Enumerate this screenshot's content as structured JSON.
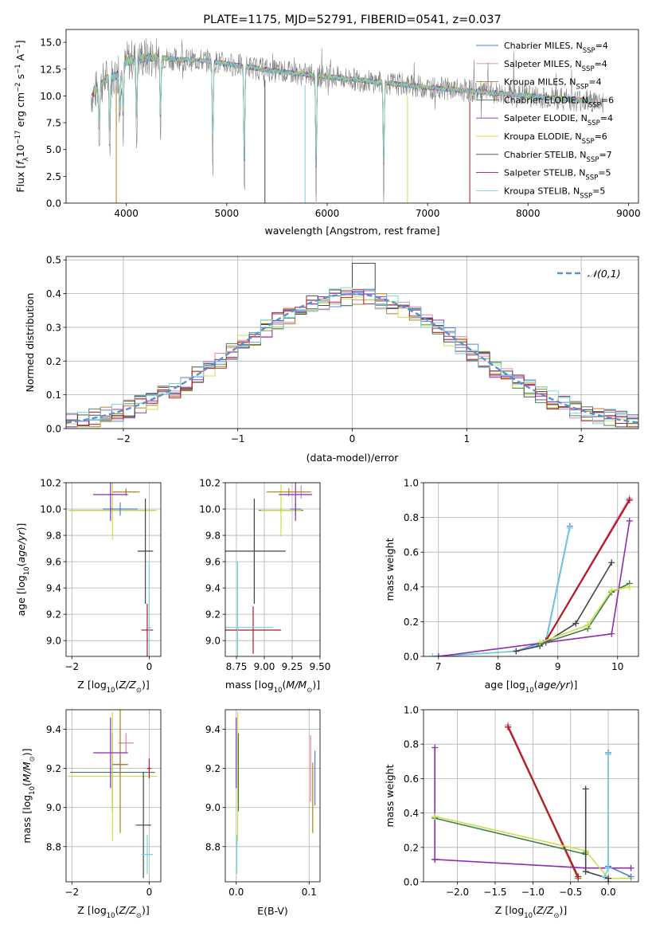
{
  "figure": {
    "title": "PLATE=1175, MJD=52791, FIBERID=0541, z=0.037"
  },
  "models": [
    {
      "label": "Chabrier MILES, N_SSP=4",
      "color": "#4f7fd6"
    },
    {
      "label": "Salpeter MILES, N_SSP=4",
      "color": "#e37fb2"
    },
    {
      "label": "Kroupa MILES, N_SSP=4",
      "color": "#b07d1c"
    },
    {
      "label": "Chabrier ELODIE, N_SSP=6",
      "color": "#3f7f4a"
    },
    {
      "label": "Salpeter ELODIE, N_SSP=4",
      "color": "#8e2bb5"
    },
    {
      "label": "Kroupa ELODIE, N_SSP=6",
      "color": "#c8e04a"
    },
    {
      "label": "Chabrier STELIB, N_SSP=7",
      "color": "#444444"
    },
    {
      "label": "Salpeter STELIB, N_SSP=5",
      "color": "#b2182b"
    },
    {
      "label": "Kroupa STELIB, N_SSP=5",
      "color": "#76d0dc"
    }
  ],
  "chart_data": [
    {
      "id": "spectrum",
      "type": "line",
      "title": "PLATE=1175, MJD=52791, FIBERID=0541, z=0.037",
      "xlabel": "wavelength [Angstrom, rest frame]",
      "ylabel": "Flux [f_λ 10^-17 erg cm^-2 s^-1 A^-1]",
      "xlim": [
        3400,
        9100
      ],
      "ylim": [
        0,
        16.2
      ],
      "xticks": [
        4000,
        5000,
        6000,
        7000,
        8000,
        9000
      ],
      "yticks": [
        0.0,
        2.5,
        5.0,
        7.5,
        10.0,
        12.5,
        15.0
      ],
      "continuum_x": [
        3650,
        3800,
        3950,
        4000,
        4100,
        4300,
        4500,
        4800,
        5000,
        5500,
        6000,
        6500,
        7000,
        7500,
        8000,
        8500,
        9000
      ],
      "continuum_y": [
        10.0,
        11.6,
        12.0,
        13.2,
        13.5,
        13.6,
        13.4,
        13.3,
        13.0,
        12.3,
        11.8,
        11.3,
        10.8,
        10.4,
        10.0,
        9.6,
        9.3
      ],
      "absorption_lines": [
        [
          3730,
          4.5
        ],
        [
          3835,
          6.0
        ],
        [
          3933,
          4.0
        ],
        [
          3968,
          5.5
        ],
        [
          4102,
          7.0
        ],
        [
          4340,
          7.0
        ],
        [
          4861,
          9.5
        ],
        [
          5175,
          11.0
        ],
        [
          5890,
          10.5
        ],
        [
          6563,
          9.5
        ]
      ],
      "spike_wavelengths": [
        3900,
        5380,
        5780,
        6800,
        7420
      ],
      "grid": false,
      "legend": "right"
    },
    {
      "id": "residuals",
      "type": "histogram",
      "xlabel": "(data-model)/error",
      "ylabel": "Normed distribution",
      "xlim": [
        -2.5,
        2.5
      ],
      "ylim": [
        0,
        0.51
      ],
      "xticks": [
        -2,
        -1,
        0,
        1,
        2
      ],
      "yticks": [
        0.0,
        0.1,
        0.2,
        0.3,
        0.4,
        0.5
      ],
      "bin_width": 0.1,
      "reference_curve": {
        "label": "𝒩(0,1)",
        "color": "#5b8fd0"
      },
      "outlier_bin": {
        "x": 0.1,
        "value": 0.49
      },
      "grid": true,
      "legend": "top-right"
    },
    {
      "id": "age_vs_Z",
      "type": "errorbar",
      "xlabel": "Z [log10(Z/Z☉)]",
      "ylabel": "age [log10(age/yr)]",
      "xlim": [
        -2.15,
        0.3
      ],
      "ylim": [
        8.88,
        10.2
      ],
      "xticks": [
        -2,
        0
      ],
      "yticks": [
        9.0,
        9.2,
        9.4,
        9.6,
        9.8,
        10.0,
        10.2
      ],
      "points": [
        {
          "model": 3,
          "x": -0.95,
          "y": 9.99,
          "xerr": 1.1,
          "yerr": 0.02
        },
        {
          "model": 5,
          "x": -0.95,
          "y": 9.99,
          "xerr": 1.15,
          "yerr": 0.22
        },
        {
          "model": 0,
          "x": -0.75,
          "y": 10.0,
          "xerr": 0.45,
          "yerr": 0.05
        },
        {
          "model": 1,
          "x": -0.6,
          "y": 10.13,
          "xerr": 0.35,
          "yerr": 0.03
        },
        {
          "model": 2,
          "x": -0.6,
          "y": 10.13,
          "xerr": 0.35,
          "yerr": 0.02
        },
        {
          "model": 4,
          "x": -1.0,
          "y": 10.11,
          "xerr": 0.45,
          "yerr": 0.2
        },
        {
          "model": 6,
          "x": -0.1,
          "y": 9.68,
          "xerr": 0.2,
          "yerr": 0.4
        },
        {
          "model": 7,
          "x": -0.05,
          "y": 9.08,
          "xerr": 0.15,
          "yerr": 0.2
        },
        {
          "model": 8,
          "x": 0.0,
          "y": 9.1,
          "xerr": 0.05,
          "yerr": 0.5
        }
      ]
    },
    {
      "id": "age_vs_mass",
      "type": "errorbar",
      "xlabel": "mass [log10(M/M☉)]",
      "ylabel": "",
      "xlim": [
        8.65,
        9.5
      ],
      "ylim": [
        8.88,
        10.2
      ],
      "xticks": [
        8.75,
        9.0,
        9.25,
        9.5
      ],
      "yticks": [
        9.0,
        9.2,
        9.4,
        9.6,
        9.8,
        10.0,
        10.2
      ],
      "points": [
        {
          "model": 3,
          "x": 9.15,
          "y": 9.99,
          "xerr": 0.2,
          "yerr": 0.02
        },
        {
          "model": 5,
          "x": 9.15,
          "y": 9.99,
          "xerr": 0.18,
          "yerr": 0.2
        },
        {
          "model": 0,
          "x": 9.28,
          "y": 10.0,
          "xerr": 0.05,
          "yerr": 0.05
        },
        {
          "model": 1,
          "x": 9.33,
          "y": 10.13,
          "xerr": 0.05,
          "yerr": 0.05
        },
        {
          "model": 2,
          "x": 9.22,
          "y": 10.13,
          "xerr": 0.2,
          "yerr": 0.03
        },
        {
          "model": 4,
          "x": 9.28,
          "y": 10.11,
          "xerr": 0.15,
          "yerr": 0.2
        },
        {
          "model": 6,
          "x": 8.91,
          "y": 9.68,
          "xerr": 0.28,
          "yerr": 0.4
        },
        {
          "model": 7,
          "x": 8.9,
          "y": 9.08,
          "xerr": 0.25,
          "yerr": 0.18
        },
        {
          "model": 8,
          "x": 8.76,
          "y": 9.1,
          "xerr": 0.32,
          "yerr": 0.5
        }
      ]
    },
    {
      "id": "weight_vs_age",
      "type": "line",
      "xlabel": "age [log10(age/yr)]",
      "ylabel": "mass weight",
      "xlim": [
        6.75,
        10.35
      ],
      "ylim": [
        0,
        1.0
      ],
      "xticks": [
        7,
        8,
        9,
        10
      ],
      "yticks": [
        0.0,
        0.2,
        0.4,
        0.6,
        0.8,
        1.0
      ],
      "series": [
        {
          "model": 0,
          "x": [
            7.0,
            8.3,
            8.8,
            9.2
          ],
          "y": [
            0.0,
            0.03,
            0.09,
            0.75
          ]
        },
        {
          "model": 8,
          "x": [
            6.9,
            8.3,
            8.8,
            9.2
          ],
          "y": [
            0.0,
            0.03,
            0.08,
            0.74
          ]
        },
        {
          "model": 1,
          "x": [
            8.8,
            10.2
          ],
          "y": [
            0.09,
            0.91
          ]
        },
        {
          "model": 2,
          "x": [
            8.8,
            10.2
          ],
          "y": [
            0.09,
            0.9
          ]
        },
        {
          "model": 7,
          "x": [
            8.8,
            10.2
          ],
          "y": [
            0.09,
            0.9
          ]
        },
        {
          "model": 4,
          "x": [
            7.0,
            8.8,
            9.9,
            10.2
          ],
          "y": [
            0.0,
            0.08,
            0.13,
            0.78
          ]
        },
        {
          "model": 6,
          "x": [
            8.3,
            8.7,
            9.3,
            9.9
          ],
          "y": [
            0.03,
            0.06,
            0.19,
            0.54
          ]
        },
        {
          "model": 3,
          "x": [
            8.7,
            9.5,
            9.9,
            10.2
          ],
          "y": [
            0.07,
            0.16,
            0.37,
            0.42
          ]
        },
        {
          "model": 5,
          "x": [
            8.7,
            9.5,
            9.9,
            10.2
          ],
          "y": [
            0.08,
            0.18,
            0.38,
            0.4
          ]
        }
      ]
    },
    {
      "id": "mass_vs_Z",
      "type": "errorbar",
      "xlabel": "Z [log10(Z/Z☉)]",
      "ylabel": "mass [log10(M/M☉)]",
      "xlim": [
        -2.15,
        0.3
      ],
      "ylim": [
        8.62,
        9.5
      ],
      "xticks": [
        -2,
        0
      ],
      "yticks": [
        8.8,
        9.0,
        9.2,
        9.4
      ],
      "points": [
        {
          "model": 3,
          "x": -0.95,
          "y": 9.18,
          "xerr": 1.1,
          "yerr": 0.2
        },
        {
          "model": 5,
          "x": -0.95,
          "y": 9.16,
          "xerr": 1.15,
          "yerr": 0.33
        },
        {
          "model": 0,
          "x": -0.75,
          "y": 9.22,
          "xerr": 0.2,
          "yerr": 0.05
        },
        {
          "model": 1,
          "x": -0.6,
          "y": 9.33,
          "xerr": 0.2,
          "yerr": 0.05
        },
        {
          "model": 2,
          "x": -0.75,
          "y": 9.22,
          "xerr": 0.2,
          "yerr": 0.35
        },
        {
          "model": 4,
          "x": -1.0,
          "y": 9.28,
          "xerr": 0.45,
          "yerr": 0.18
        },
        {
          "model": 6,
          "x": -0.15,
          "y": 8.91,
          "xerr": 0.2,
          "yerr": 0.27
        },
        {
          "model": 7,
          "x": 0.0,
          "y": 9.2,
          "xerr": 0.05,
          "yerr": 0.05
        },
        {
          "model": 8,
          "x": -0.05,
          "y": 8.76,
          "xerr": 0.15,
          "yerr": 0.1
        }
      ]
    },
    {
      "id": "mass_vs_ebv",
      "type": "errorbar",
      "xlabel": "E(B-V)",
      "ylabel": "",
      "xlim": [
        -0.015,
        0.115
      ],
      "ylim": [
        8.62,
        9.5
      ],
      "xticks": [
        0.0,
        0.1
      ],
      "yticks": [
        8.8,
        9.0,
        9.2,
        9.4
      ],
      "points": [
        {
          "model": 4,
          "x": 0.0,
          "y": 9.28,
          "xerr": 0.0,
          "yerr": 0.18
        },
        {
          "model": 5,
          "x": 0.002,
          "y": 9.16,
          "xerr": 0.0,
          "yerr": 0.33
        },
        {
          "model": 3,
          "x": 0.003,
          "y": 9.18,
          "xerr": 0.0,
          "yerr": 0.2
        },
        {
          "model": 8,
          "x": 0.001,
          "y": 8.76,
          "xerr": 0.0,
          "yerr": 0.1
        },
        {
          "model": 1,
          "x": 0.102,
          "y": 9.2,
          "xerr": 0.0,
          "yerr": 0.17
        },
        {
          "model": 2,
          "x": 0.105,
          "y": 9.05,
          "xerr": 0.0,
          "yerr": 0.18
        },
        {
          "model": 0,
          "x": 0.108,
          "y": 9.15,
          "xerr": 0.0,
          "yerr": 0.14
        }
      ]
    },
    {
      "id": "weight_vs_Z",
      "type": "line",
      "xlabel": "Z [log10(Z/Z☉)]",
      "ylabel": "mass weight",
      "xlim": [
        -2.45,
        0.4
      ],
      "ylim": [
        0,
        1.0
      ],
      "xticks": [
        -2.0,
        -1.5,
        -1.0,
        -0.5,
        0.0
      ],
      "yticks": [
        0.0,
        0.2,
        0.4,
        0.6,
        0.8,
        1.0
      ],
      "series": [
        {
          "model": 1,
          "x": [
            -1.33,
            -0.4
          ],
          "y": [
            0.91,
            0.02
          ]
        },
        {
          "model": 2,
          "x": [
            -1.33,
            -0.4
          ],
          "y": [
            0.9,
            0.02
          ]
        },
        {
          "model": 7,
          "x": [
            -1.33,
            -0.4
          ],
          "y": [
            0.9,
            0.03
          ]
        },
        {
          "model": 4,
          "x": [
            -2.3,
            -2.3,
            -2.3,
            -0.3,
            0.3
          ],
          "y": [
            0.78,
            0.13,
            0.13,
            0.08,
            0.08
          ]
        },
        {
          "model": 3,
          "x": [
            -2.3,
            -0.3,
            -0.3
          ],
          "y": [
            0.37,
            0.16,
            0.17
          ]
        },
        {
          "model": 5,
          "x": [
            -2.3,
            -0.3,
            0.0,
            0.3
          ],
          "y": [
            0.38,
            0.18,
            0.02,
            0.02
          ]
        },
        {
          "model": 6,
          "x": [
            -0.3,
            -0.3,
            0.0,
            0.0
          ],
          "y": [
            0.54,
            0.06,
            0.02,
            0.0
          ]
        },
        {
          "model": 0,
          "x": [
            0.0,
            0.0,
            0.3
          ],
          "y": [
            0.75,
            0.09,
            0.03
          ]
        },
        {
          "model": 8,
          "x": [
            0.0,
            0.0,
            -0.05
          ],
          "y": [
            0.74,
            0.08,
            0.03
          ]
        }
      ]
    }
  ]
}
